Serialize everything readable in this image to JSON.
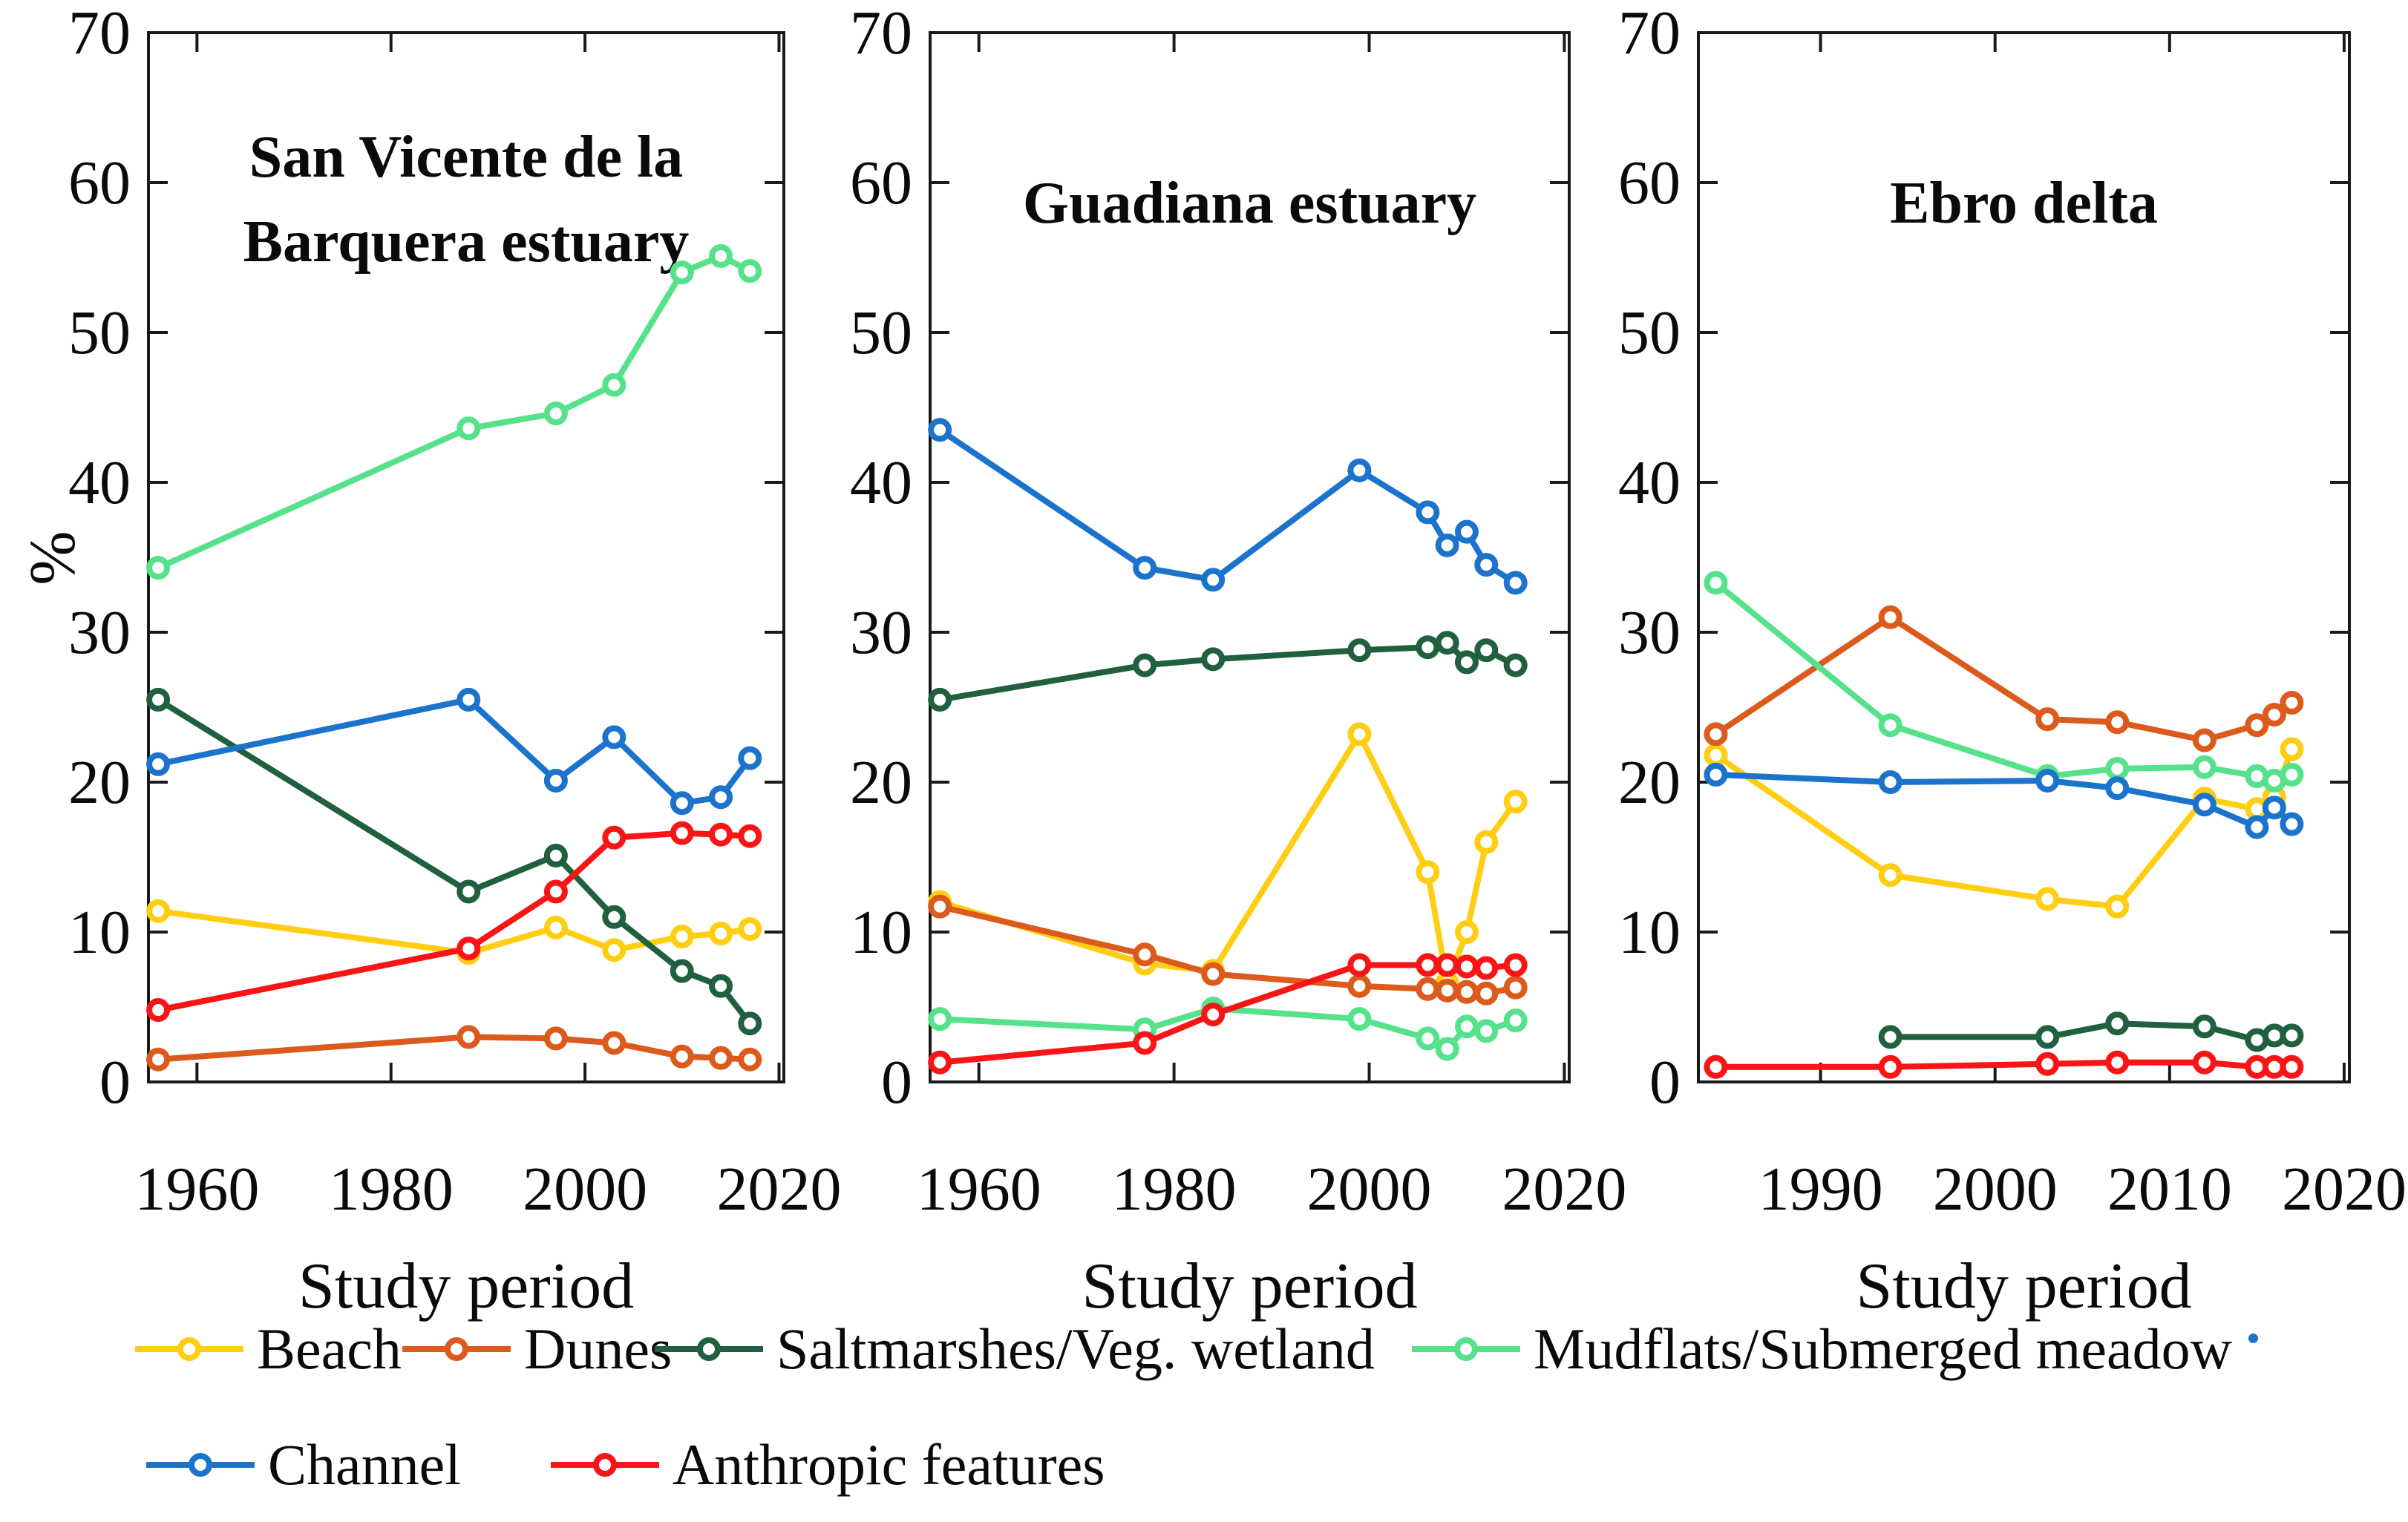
{
  "figure": {
    "ylabel": "%",
    "colors": {
      "beach": "#FFCE12",
      "dunes": "#DB5A1C",
      "saltmarsh": "#20603F",
      "mudflat": "#55E28B",
      "channel": "#1B73CC",
      "anthropic": "#F91515",
      "axis": "#1a1a1a",
      "text": "#0a0a0a"
    },
    "legend_rows": [
      [
        {
          "label": "Beach",
          "key": "beach"
        },
        {
          "label": "Dunes",
          "key": "dunes"
        },
        {
          "label": "Saltmarshes/Veg. wetland",
          "key": "saltmarsh"
        },
        {
          "label": "Mudflats/Submerged meadow",
          "key": "mudflat",
          "trailing_dot": true
        }
      ],
      [
        {
          "label": "Channel",
          "key": "channel"
        },
        {
          "label": "Anthropic features",
          "key": "anthropic"
        }
      ]
    ]
  },
  "chart_data": [
    {
      "type": "line",
      "title": "San Vicente de la Barquera estuary",
      "title_lines": [
        "San Vicente de la",
        "Barquera estuary"
      ],
      "slug": "san-vicente-de-la-barquera-estuary",
      "xlabel": "Study period",
      "ylabel": "%",
      "grid": false,
      "xlim": [
        1955,
        2020.5
      ],
      "ylim": [
        0,
        70
      ],
      "x_ticks": [
        1960,
        1980,
        2000,
        2020
      ],
      "y_ticks": [
        0,
        10,
        20,
        30,
        40,
        50,
        60,
        70
      ],
      "x": [
        1956,
        1988,
        1997,
        2003,
        2010,
        2014,
        2017
      ],
      "series": [
        {
          "name": "Beach",
          "key": "beach",
          "values": [
            11.4,
            8.6,
            10.3,
            8.8,
            9.7,
            9.9,
            10.2
          ]
        },
        {
          "name": "Dunes",
          "key": "dunes",
          "values": [
            1.5,
            3.0,
            2.9,
            2.6,
            1.7,
            1.6,
            1.5
          ]
        },
        {
          "name": "Saltmarshes/Veg. wetland",
          "key": "saltmarsh",
          "values": [
            25.5,
            12.7,
            15.1,
            11.0,
            7.4,
            6.4,
            3.9
          ]
        },
        {
          "name": "Mudflats/Submerged meadow",
          "key": "mudflat",
          "values": [
            34.3,
            43.6,
            44.6,
            46.5,
            54.0,
            55.1,
            54.1
          ]
        },
        {
          "name": "Channel",
          "key": "channel",
          "values": [
            21.2,
            25.5,
            20.1,
            23.0,
            18.6,
            19.0,
            21.6
          ]
        },
        {
          "name": "Anthropic features",
          "key": "anthropic",
          "values": [
            4.8,
            8.9,
            12.7,
            16.3,
            16.6,
            16.5,
            16.4
          ]
        }
      ]
    },
    {
      "type": "line",
      "title": "Guadiana estuary",
      "title_lines": [
        "Guadiana estuary"
      ],
      "slug": "guadiana-estuary",
      "xlabel": "Study period",
      "ylabel": "%",
      "grid": false,
      "xlim": [
        1955,
        2020.5
      ],
      "ylim": [
        0,
        70
      ],
      "x_ticks": [
        1960,
        1980,
        2000,
        2020
      ],
      "y_ticks": [
        0,
        10,
        20,
        30,
        40,
        50,
        60,
        70
      ],
      "x": [
        1956,
        1977,
        1984,
        1999,
        2006,
        2008,
        2010,
        2012,
        2015
      ],
      "series": [
        {
          "name": "Beach",
          "key": "beach",
          "values": [
            12.0,
            7.9,
            7.4,
            23.2,
            14.0,
            6.6,
            10.0,
            16.0,
            18.7
          ]
        },
        {
          "name": "Dunes",
          "key": "dunes",
          "values": [
            11.7,
            8.5,
            7.2,
            6.4,
            6.2,
            6.1,
            6.0,
            5.9,
            6.3
          ]
        },
        {
          "name": "Saltmarshes/Veg. wetland",
          "key": "saltmarsh",
          "values": [
            25.5,
            27.8,
            28.2,
            28.8,
            29.0,
            29.3,
            28.0,
            28.8,
            27.8
          ]
        },
        {
          "name": "Mudflats/Submerged meadow",
          "key": "mudflat",
          "values": [
            4.2,
            3.5,
            4.9,
            4.2,
            2.9,
            2.2,
            3.7,
            3.4,
            4.1
          ]
        },
        {
          "name": "Channel",
          "key": "channel",
          "values": [
            43.5,
            34.3,
            33.5,
            40.8,
            38.0,
            35.8,
            36.7,
            34.5,
            33.3
          ]
        },
        {
          "name": "Anthropic features",
          "key": "anthropic",
          "values": [
            1.3,
            2.6,
            4.5,
            7.8,
            7.8,
            7.8,
            7.7,
            7.6,
            7.8
          ]
        }
      ]
    },
    {
      "type": "line",
      "title": "Ebro delta",
      "title_lines": [
        "Ebro delta"
      ],
      "slug": "ebro-delta",
      "xlabel": "Study period",
      "ylabel": "%",
      "grid": false,
      "xlim": [
        1983,
        2020.3
      ],
      "ylim": [
        0,
        70
      ],
      "x_ticks": [
        1990,
        2000,
        2010,
        2020
      ],
      "y_ticks": [
        0,
        10,
        20,
        30,
        40,
        50,
        60,
        70
      ],
      "x": [
        1984,
        1994,
        2003,
        2007,
        2012,
        2015,
        2016,
        2017
      ],
      "series": [
        {
          "name": "Beach",
          "key": "beach",
          "values": [
            21.8,
            13.8,
            12.2,
            11.7,
            18.9,
            18.2,
            19.0,
            22.2
          ]
        },
        {
          "name": "Dunes",
          "key": "dunes",
          "values": [
            23.2,
            31.0,
            24.2,
            24.0,
            22.8,
            23.8,
            24.5,
            25.3
          ]
        },
        {
          "name": "Saltmarshes/Veg. wetland",
          "key": "saltmarsh",
          "values": [
            null,
            3.0,
            3.0,
            3.9,
            3.7,
            2.8,
            3.1,
            3.1
          ]
        },
        {
          "name": "Mudflats/Submerged meadow",
          "key": "mudflat",
          "values": [
            33.3,
            23.8,
            20.4,
            20.9,
            21.0,
            20.4,
            20.1,
            20.5
          ]
        },
        {
          "name": "Channel",
          "key": "channel",
          "values": [
            20.5,
            20.0,
            20.1,
            19.6,
            18.5,
            17.0,
            18.3,
            17.2
          ]
        },
        {
          "name": "Anthropic features",
          "key": "anthropic",
          "values": [
            1.0,
            1.0,
            1.2,
            1.3,
            1.3,
            1.0,
            1.0,
            1.0
          ]
        }
      ]
    }
  ]
}
